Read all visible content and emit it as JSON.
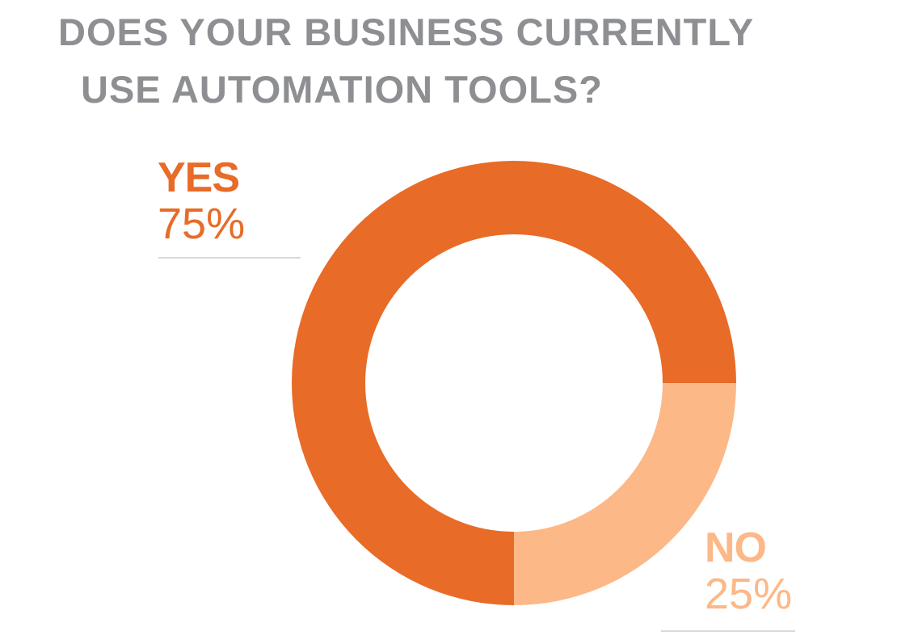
{
  "title": {
    "line1": "DOES YOUR BUSINESS CURRENTLY",
    "line2": "USE  AUTOMATION TOOLS?"
  },
  "labels": {
    "yes": {
      "category": "YES",
      "value": "75%"
    },
    "no": {
      "category": "NO",
      "value": "25%"
    }
  },
  "colors": {
    "title": "#8e8f93",
    "yes": "#e86b27",
    "no": "#fcb887",
    "rule": "#d9d9d9"
  },
  "chart_data": {
    "type": "pie",
    "variant": "donut",
    "title": "DOES YOUR BUSINESS CURRENTLY USE  AUTOMATION TOOLS?",
    "categories": [
      "YES",
      "NO"
    ],
    "values": [
      75,
      25
    ],
    "unit": "%",
    "data_labels": [
      "75%",
      "25%"
    ],
    "legend": "none",
    "grid": false
  }
}
